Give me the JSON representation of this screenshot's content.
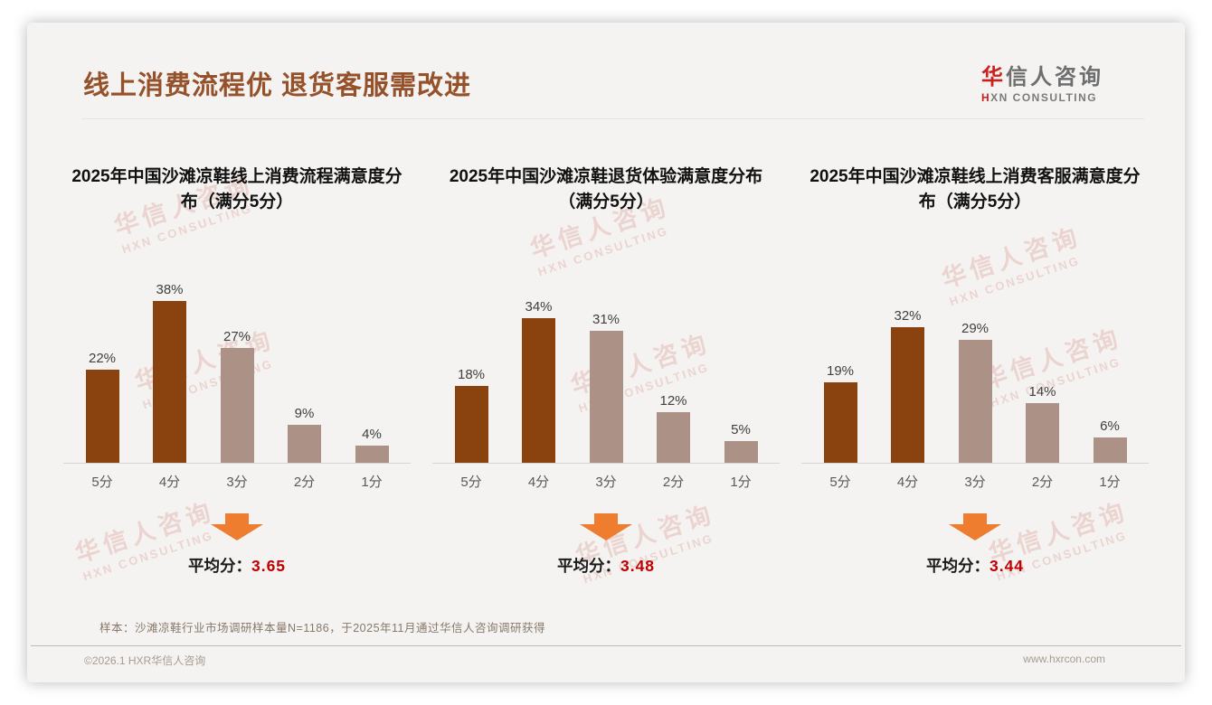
{
  "page": {
    "title": "线上消费流程优 退货客服需改进",
    "logo": {
      "zh_first": "华",
      "zh_rest": "信人咨询",
      "en_first": "H",
      "en_rest": "XN CONSULTING"
    },
    "watermark": {
      "line1": "华信人咨询",
      "line2": "HXN CONSULTING"
    },
    "note": "样本：沙滩凉鞋行业市场调研样本量N=1186，于2025年11月通过华信人咨询调研获得",
    "footer_left": "©2026.1 HXR华信人咨询",
    "footer_right": "www.hxrcon.com"
  },
  "colors": {
    "title_brown": "#94512a",
    "bar_dark": "#8a430f",
    "bar_light": "#ac9187",
    "arrow_orange": "#ee7d2f",
    "avg_red": "#c00000",
    "logo_red": "#c9211d",
    "watermark": "rgba(198,92,74,0.20)"
  },
  "chart_data": [
    {
      "type": "bar",
      "title": "2025年中国沙滩凉鞋线上消费流程满意度分布（满分5分）",
      "categories": [
        "5分",
        "4分",
        "3分",
        "2分",
        "1分"
      ],
      "values": [
        22,
        38,
        27,
        9,
        4
      ],
      "value_labels": [
        "22%",
        "38%",
        "27%",
        "9%",
        "4%"
      ],
      "bar_colors": [
        "dark",
        "dark",
        "light",
        "light",
        "light"
      ],
      "average_label": "平均分：",
      "average_value": "3.65",
      "ylabel": "",
      "xlabel": "",
      "ylim": [
        0,
        40
      ],
      "grid": false,
      "legend": "none"
    },
    {
      "type": "bar",
      "title": "2025年中国沙滩凉鞋退货体验满意度分布（满分5分）",
      "categories": [
        "5分",
        "4分",
        "3分",
        "2分",
        "1分"
      ],
      "values": [
        18,
        34,
        31,
        12,
        5
      ],
      "value_labels": [
        "18%",
        "34%",
        "31%",
        "12%",
        "5%"
      ],
      "bar_colors": [
        "dark",
        "dark",
        "light",
        "light",
        "light"
      ],
      "average_label": "平均分：",
      "average_value": "3.48",
      "ylabel": "",
      "xlabel": "",
      "ylim": [
        0,
        40
      ],
      "grid": false,
      "legend": "none"
    },
    {
      "type": "bar",
      "title": "2025年中国沙滩凉鞋线上消费客服满意度分布（满分5分）",
      "categories": [
        "5分",
        "4分",
        "3分",
        "2分",
        "1分"
      ],
      "values": [
        19,
        32,
        29,
        14,
        6
      ],
      "value_labels": [
        "19%",
        "32%",
        "29%",
        "14%",
        "6%"
      ],
      "bar_colors": [
        "dark",
        "dark",
        "light",
        "light",
        "light"
      ],
      "average_label": "平均分：",
      "average_value": "3.44",
      "ylabel": "",
      "xlabel": "",
      "ylim": [
        0,
        40
      ],
      "grid": false,
      "legend": "none"
    }
  ]
}
